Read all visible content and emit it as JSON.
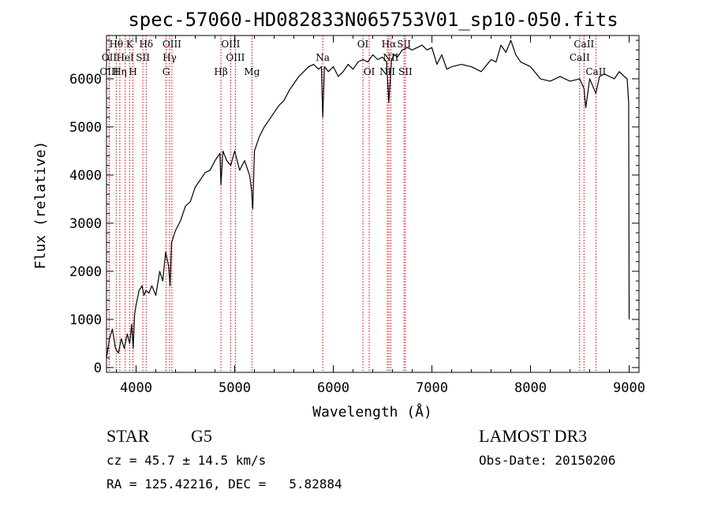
{
  "chart_data": {
    "type": "line",
    "title": "spec-57060-HD082833N065753V01_sp10-050.fits",
    "xlabel": "Wavelength (Å)",
    "ylabel": "Flux (relative)",
    "xlim": [
      3700,
      9100
    ],
    "ylim": [
      -100,
      6900
    ],
    "x_ticks": [
      4000,
      5000,
      6000,
      7000,
      8000,
      9000
    ],
    "y_ticks": [
      0,
      1000,
      2000,
      3000,
      4000,
      5000,
      6000
    ],
    "x_tick_labels": [
      "4000",
      "5000",
      "6000",
      "7000",
      "8000",
      "9000"
    ],
    "y_tick_labels": [
      "0",
      "1000",
      "2000",
      "3000",
      "4000",
      "5000",
      "6000"
    ],
    "series": [
      {
        "name": "flux",
        "x": [
          3700,
          3730,
          3760,
          3790,
          3820,
          3850,
          3880,
          3910,
          3935,
          3955,
          3970,
          3985,
          4000,
          4030,
          4060,
          4080,
          4100,
          4130,
          4160,
          4200,
          4240,
          4270,
          4300,
          4330,
          4345,
          4360,
          4400,
          4450,
          4500,
          4550,
          4600,
          4650,
          4700,
          4750,
          4800,
          4850,
          4861,
          4880,
          4920,
          4960,
          5000,
          5050,
          5100,
          5150,
          5170,
          5183,
          5200,
          5250,
          5300,
          5350,
          5400,
          5450,
          5500,
          5550,
          5600,
          5650,
          5700,
          5750,
          5800,
          5850,
          5880,
          5893,
          5910,
          5950,
          6000,
          6050,
          6100,
          6150,
          6200,
          6250,
          6300,
          6350,
          6400,
          6450,
          6500,
          6540,
          6563,
          6590,
          6620,
          6650,
          6700,
          6750,
          6800,
          6850,
          6900,
          6950,
          7000,
          7050,
          7100,
          7150,
          7200,
          7300,
          7400,
          7500,
          7600,
          7650,
          7700,
          7750,
          7800,
          7850,
          7900,
          8000,
          8100,
          8200,
          8300,
          8400,
          8498,
          8542,
          8560,
          8600,
          8662,
          8700,
          8750,
          8800,
          8850,
          8900,
          8950,
          8980,
          8995,
          9000
        ],
        "values": [
          200,
          600,
          800,
          400,
          300,
          600,
          400,
          700,
          500,
          900,
          400,
          1100,
          1300,
          1600,
          1700,
          1500,
          1600,
          1550,
          1700,
          1500,
          2000,
          1800,
          2400,
          2100,
          1700,
          2600,
          2850,
          3050,
          3350,
          3450,
          3750,
          3900,
          4050,
          4100,
          4300,
          4450,
          3800,
          4500,
          4300,
          4200,
          4500,
          4100,
          4300,
          4000,
          3700,
          3300,
          4500,
          4800,
          5000,
          5150,
          5300,
          5450,
          5550,
          5750,
          5900,
          6050,
          6150,
          6250,
          6300,
          6200,
          6250,
          5200,
          6250,
          6150,
          6250,
          6050,
          6150,
          6300,
          6200,
          6350,
          6400,
          6350,
          6500,
          6400,
          6450,
          6350,
          5500,
          6400,
          6500,
          6450,
          6600,
          6650,
          6600,
          6650,
          6700,
          6600,
          6650,
          6300,
          6500,
          6200,
          6250,
          6300,
          6250,
          6150,
          6400,
          6350,
          6700,
          6550,
          6800,
          6500,
          6350,
          6250,
          6000,
          5950,
          6050,
          5950,
          6000,
          5800,
          5400,
          6000,
          5700,
          6050,
          6100,
          6050,
          6000,
          6150,
          6050,
          6000,
          5500,
          1000
        ]
      }
    ],
    "line_markers": [
      {
        "label": "Hθ",
        "x": 3798,
        "row": 0
      },
      {
        "label": "OII",
        "x": 3727,
        "row": 1
      },
      {
        "label": "OIII",
        "x": 3727,
        "row": 2
      },
      {
        "label": "K",
        "x": 3934,
        "row": 0
      },
      {
        "label": "HeI",
        "x": 3889,
        "row": 1
      },
      {
        "label": "Hη",
        "x": 3835,
        "row": 2
      },
      {
        "label": "H",
        "x": 3969,
        "row": 2
      },
      {
        "label": "SII",
        "x": 4069,
        "row": 1
      },
      {
        "label": "Hδ",
        "x": 4102,
        "row": 0
      },
      {
        "label": "OIII",
        "x": 4363,
        "row": 0
      },
      {
        "label": "Hγ",
        "x": 4340,
        "row": 1
      },
      {
        "label": "G",
        "x": 4304,
        "row": 2
      },
      {
        "label": "OIII",
        "x": 4959,
        "row": 0
      },
      {
        "label": "OIII",
        "x": 5007,
        "row": 1
      },
      {
        "label": "Hβ",
        "x": 4861,
        "row": 2
      },
      {
        "label": "Mg",
        "x": 5175,
        "row": 2
      },
      {
        "label": "Na",
        "x": 5893,
        "row": 1
      },
      {
        "label": "OI",
        "x": 6300,
        "row": 0
      },
      {
        "label": "OI",
        "x": 6364,
        "row": 2
      },
      {
        "label": "Hα",
        "x": 6563,
        "row": 0
      },
      {
        "label": "SII",
        "x": 6717,
        "row": 0
      },
      {
        "label": "NII",
        "x": 6583,
        "row": 1
      },
      {
        "label": "NII",
        "x": 6548,
        "row": 2
      },
      {
        "label": "SII",
        "x": 6731,
        "row": 2
      },
      {
        "label": "CaII",
        "x": 8542,
        "row": 0
      },
      {
        "label": "CaII",
        "x": 8498,
        "row": 1
      },
      {
        "label": "CaII",
        "x": 8662,
        "row": 2
      }
    ]
  },
  "info": {
    "class": "STAR",
    "subclass": "G5",
    "survey": "LAMOST DR3",
    "cz": "cz = 45.7 ± 14.5 km/s",
    "obs_date": "Obs-Date: 20150206",
    "radec": "RA = 125.42216, DEC =   5.82884"
  },
  "colors": {
    "line": "#000000",
    "marker": "#cc0000",
    "background": "#ffffff"
  }
}
